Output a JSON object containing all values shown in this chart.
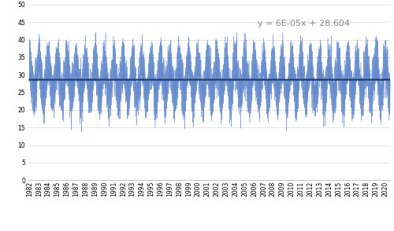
{
  "x_start_year": 1982,
  "x_end_year": 2020,
  "n_points": 13880,
  "slope": 6e-05,
  "intercept": 28.604,
  "mean_temp": 28.604,
  "seasonal_amplitude": 5.0,
  "noise_std": 2.8,
  "yticks": [
    0,
    5,
    10,
    15,
    20,
    25,
    30,
    35,
    40,
    45,
    50
  ],
  "x_labels": [
    "1982",
    "1983",
    "1984",
    "1985",
    "1986",
    "1987",
    "1988",
    "1989",
    "1990",
    "1991",
    "1992",
    "1993",
    "1994",
    "1995",
    "1996",
    "1997",
    "1998",
    "1999",
    "2000",
    "2001",
    "2002",
    "2003",
    "2004",
    "2005",
    "2006",
    "2007",
    "2008",
    "2009",
    "2010",
    "2011",
    "2012",
    "2013",
    "2014",
    "2015",
    "2016",
    "2017",
    "2018",
    "2019",
    "2020"
  ],
  "line_color": "#4472C4",
  "trend_color": "#1F3864",
  "trend_label": "y = 6E-05x + 28.604",
  "grid_color": "#D9D9D9",
  "bg_color": "#FFFFFF",
  "fill_alpha": 0.35,
  "line_width": 0.3,
  "trend_linewidth": 1.5,
  "annotation_fontsize": 8,
  "tick_fontsize": 5.5
}
